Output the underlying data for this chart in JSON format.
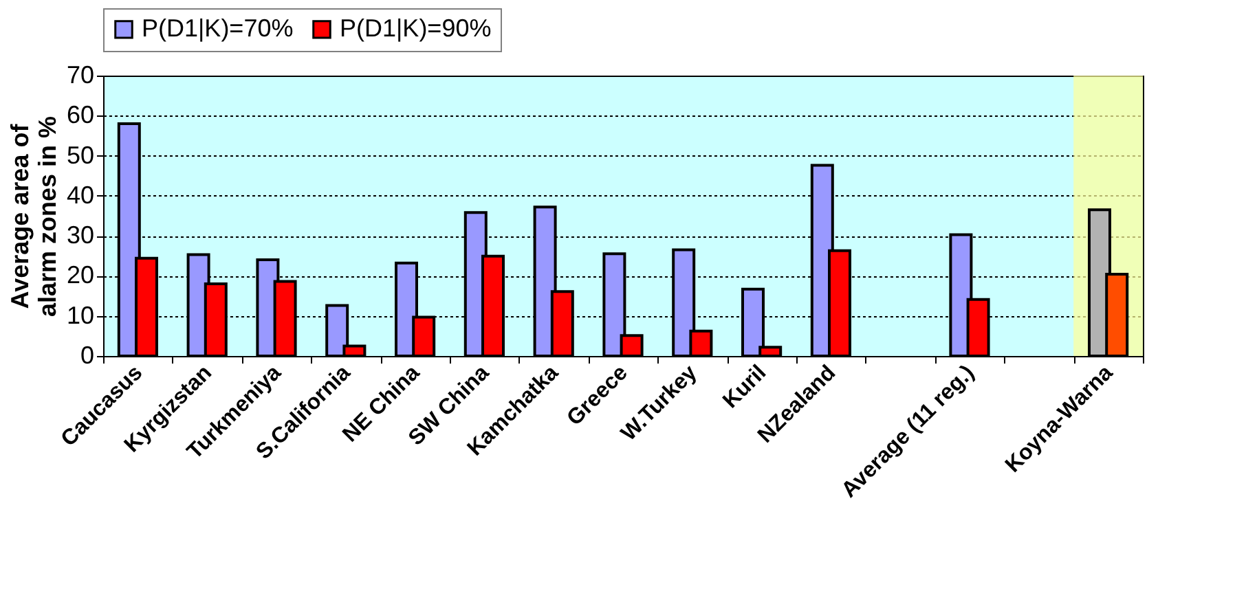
{
  "chart_data": {
    "type": "bar",
    "ylabel": "Average area of\nalarm zones in %",
    "categories": [
      "Caucasus",
      "Kyrgizstan",
      "Turkmeniya",
      "S.California",
      "NE China",
      "SW China",
      "Kamchatka",
      "Greece",
      "W.Turkey",
      "Kuril",
      "NZealand",
      null,
      "Average (11 reg.)",
      null,
      "Koyna-Warna"
    ],
    "series": [
      {
        "name": "P(D1|K)=70%",
        "color": "#9999ff",
        "colors": [
          "#9999ff",
          "#9999ff",
          "#9999ff",
          "#9999ff",
          "#9999ff",
          "#9999ff",
          "#9999ff",
          "#9999ff",
          "#9999ff",
          "#9999ff",
          "#9999ff",
          "#9999ff",
          "#9999ff",
          "#9999ff",
          "#b2b2b2"
        ],
        "values": [
          58.0,
          25.3,
          24.0,
          12.6,
          23.2,
          35.8,
          37.2,
          25.5,
          26.5,
          16.7,
          47.6,
          null,
          30.3,
          null,
          36.5
        ]
      },
      {
        "name": "P(D1|K)=90%",
        "color": "#ff0000",
        "colors": [
          "#ff0000",
          "#ff0000",
          "#ff0000",
          "#ff0000",
          "#ff0000",
          "#ff0000",
          "#ff0000",
          "#ff0000",
          "#ff0000",
          "#ff0000",
          "#ff0000",
          "#ff0000",
          "#ff0000",
          "#ff0000",
          "#ff4d00"
        ],
        "values": [
          24.4,
          18.0,
          18.6,
          2.5,
          9.7,
          24.9,
          16.1,
          5.1,
          6.2,
          2.2,
          26.3,
          null,
          14.1,
          null,
          20.4
        ]
      }
    ],
    "ylim": [
      0,
      70
    ],
    "yticks": [
      0,
      10,
      20,
      30,
      40,
      50,
      60,
      70
    ],
    "grid": "y",
    "legend": "top",
    "bands": [
      {
        "axis": "x",
        "from": "Koyna-Warna",
        "to": "Koyna-Warna",
        "color": "#ffff99"
      }
    ]
  }
}
